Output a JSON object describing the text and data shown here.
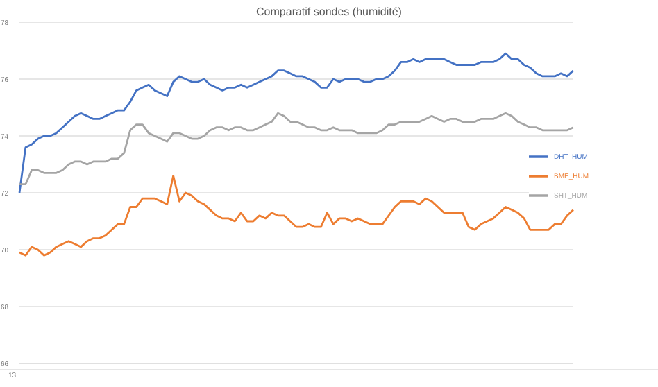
{
  "chart_data": {
    "type": "line",
    "title": "Comparatif sondes (humidité)",
    "categories": [
      null,
      null,
      null,
      null,
      null,
      null,
      null,
      null,
      null,
      null,
      null,
      null,
      null,
      null,
      null,
      null,
      null,
      null,
      null,
      null,
      null,
      null,
      null,
      null,
      null,
      null,
      null,
      null,
      null,
      null,
      null,
      null,
      null,
      null,
      null,
      null,
      null,
      null,
      null,
      null,
      null,
      null,
      null,
      null,
      null,
      null,
      null,
      null,
      null,
      null,
      null,
      null,
      null,
      null,
      null,
      null,
      null,
      null,
      null,
      null,
      null,
      null,
      null,
      null,
      null,
      null,
      null,
      null,
      null,
      null,
      null,
      null,
      null,
      null,
      null,
      null,
      null,
      null,
      null,
      null,
      null,
      null,
      null,
      null,
      null,
      null,
      null,
      null,
      null,
      null,
      null
    ],
    "series": [
      {
        "name": "DHT_HUM",
        "color": "#4472c4",
        "values": [
          72.0,
          73.6,
          73.7,
          73.9,
          74.0,
          74.0,
          74.1,
          74.3,
          74.5,
          74.7,
          74.8,
          74.7,
          74.6,
          74.6,
          74.7,
          74.8,
          74.9,
          74.9,
          75.2,
          75.6,
          75.7,
          75.8,
          75.6,
          75.5,
          75.4,
          75.9,
          76.1,
          76.0,
          75.9,
          75.9,
          76.0,
          75.8,
          75.7,
          75.6,
          75.7,
          75.7,
          75.8,
          75.7,
          75.8,
          75.9,
          76.0,
          76.1,
          76.3,
          76.3,
          76.2,
          76.1,
          76.1,
          76.0,
          75.9,
          75.7,
          75.7,
          76.0,
          75.9,
          76.0,
          76.0,
          76.0,
          75.9,
          75.9,
          76.0,
          76.0,
          76.1,
          76.3,
          76.6,
          76.6,
          76.7,
          76.6,
          76.7,
          76.7,
          76.7,
          76.7,
          76.6,
          76.5,
          76.5,
          76.5,
          76.5,
          76.6,
          76.6,
          76.6,
          76.7,
          76.9,
          76.7,
          76.7,
          76.5,
          76.4,
          76.2,
          76.1,
          76.1,
          76.1,
          76.2,
          76.1,
          76.3
        ]
      },
      {
        "name": "BME_HUM",
        "color": "#ed7d31",
        "values": [
          69.9,
          69.8,
          70.1,
          70.0,
          69.8,
          69.9,
          70.1,
          70.2,
          70.3,
          70.2,
          70.1,
          70.3,
          70.4,
          70.4,
          70.5,
          70.7,
          70.9,
          70.9,
          71.5,
          71.5,
          71.8,
          71.8,
          71.8,
          71.7,
          71.6,
          72.6,
          71.7,
          72.0,
          71.9,
          71.7,
          71.6,
          71.4,
          71.2,
          71.1,
          71.1,
          71.0,
          71.3,
          71.0,
          71.0,
          71.2,
          71.1,
          71.3,
          71.2,
          71.2,
          71.0,
          70.8,
          70.8,
          70.9,
          70.8,
          70.8,
          71.3,
          70.9,
          71.1,
          71.1,
          71.0,
          71.1,
          71.0,
          70.9,
          70.9,
          70.9,
          71.2,
          71.5,
          71.7,
          71.7,
          71.7,
          71.6,
          71.8,
          71.7,
          71.5,
          71.3,
          71.3,
          71.3,
          71.3,
          70.8,
          70.7,
          70.9,
          71.0,
          71.1,
          71.3,
          71.5,
          71.4,
          71.3,
          71.1,
          70.7,
          70.7,
          70.7,
          70.7,
          70.9,
          70.9,
          71.2,
          71.4
        ]
      },
      {
        "name": "SHT_HUM",
        "color": "#a5a5a5",
        "values": [
          72.3,
          72.3,
          72.8,
          72.8,
          72.7,
          72.7,
          72.7,
          72.8,
          73.0,
          73.1,
          73.1,
          73.0,
          73.1,
          73.1,
          73.1,
          73.2,
          73.2,
          73.4,
          74.2,
          74.4,
          74.4,
          74.1,
          74.0,
          73.9,
          73.8,
          74.1,
          74.1,
          74.0,
          73.9,
          73.9,
          74.0,
          74.2,
          74.3,
          74.3,
          74.2,
          74.3,
          74.3,
          74.2,
          74.2,
          74.3,
          74.4,
          74.5,
          74.8,
          74.7,
          74.5,
          74.5,
          74.4,
          74.3,
          74.3,
          74.2,
          74.2,
          74.3,
          74.2,
          74.2,
          74.2,
          74.1,
          74.1,
          74.1,
          74.1,
          74.2,
          74.4,
          74.4,
          74.5,
          74.5,
          74.5,
          74.5,
          74.6,
          74.7,
          74.6,
          74.5,
          74.6,
          74.6,
          74.5,
          74.5,
          74.5,
          74.6,
          74.6,
          74.6,
          74.7,
          74.8,
          74.7,
          74.5,
          74.4,
          74.3,
          74.3,
          74.2,
          74.2,
          74.2,
          74.2,
          74.2,
          74.3
        ]
      }
    ],
    "ylim": [
      66,
      78
    ],
    "yticks": [
      66,
      68,
      70,
      72,
      74,
      76,
      78
    ],
    "grid": "y",
    "legend": "right",
    "marker": "none",
    "line_style": "solid",
    "annotations": [
      "13"
    ]
  }
}
